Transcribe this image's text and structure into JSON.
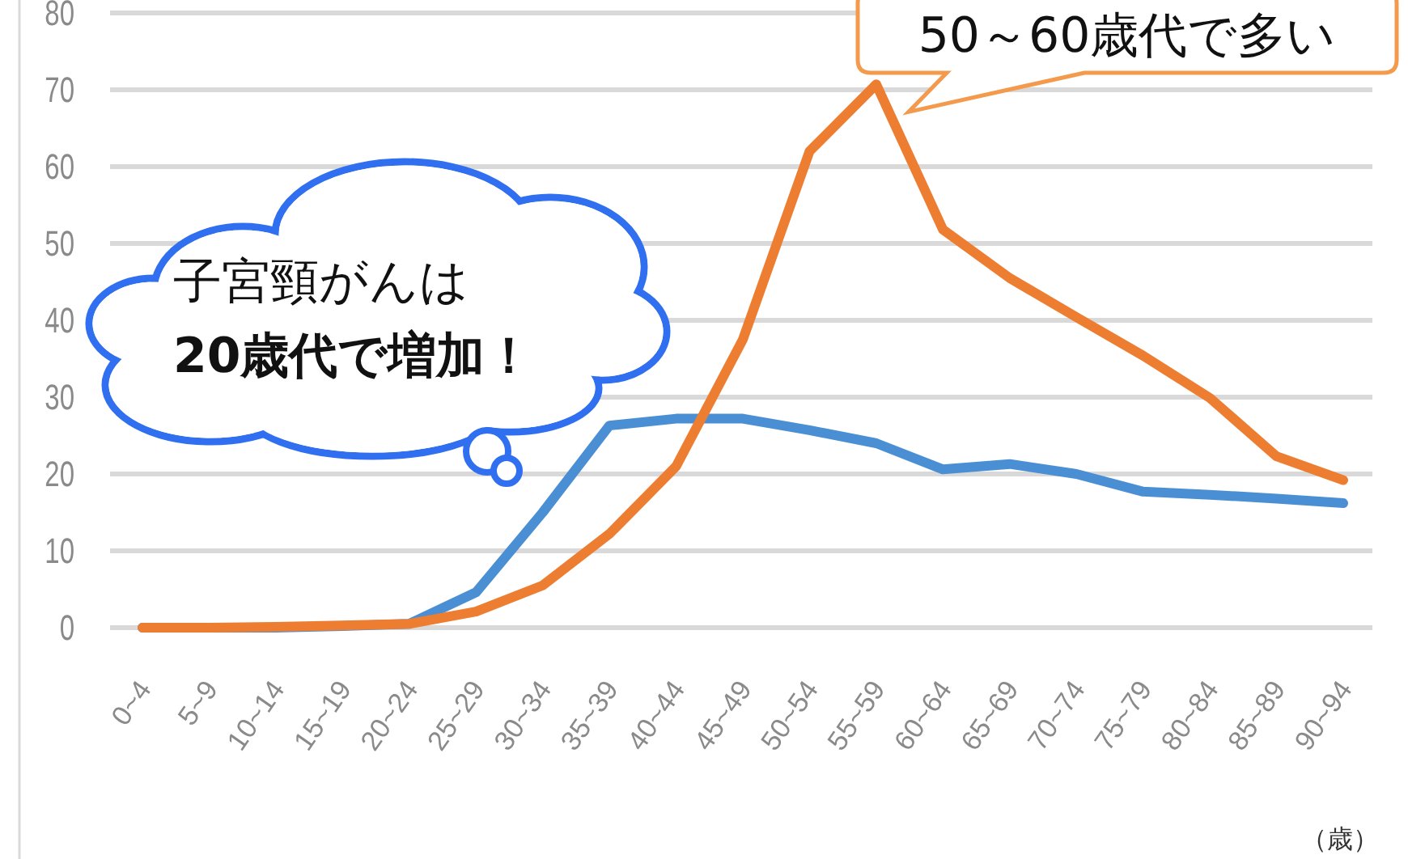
{
  "chart_data": {
    "type": "line",
    "categories": [
      "0~4",
      "5~9",
      "10~14",
      "15~19",
      "20~24",
      "25~29",
      "30~34",
      "35~39",
      "40~44",
      "45~49",
      "50~54",
      "55~59",
      "60~64",
      "65~69",
      "70~74",
      "75~79",
      "80~84",
      "85~89",
      "90~94"
    ],
    "series": [
      {
        "color": "#4a8fd4",
        "values": [
          0,
          0,
          0,
          0.2,
          0.5,
          4.6,
          15,
          26.3,
          27.2,
          27.2,
          25.7,
          24,
          20.6,
          21.3,
          20,
          17.7,
          17.3,
          16.8,
          16.2
        ]
      },
      {
        "color": "#ed7d31",
        "values": [
          0,
          0,
          0.1,
          0.3,
          0.5,
          2.1,
          5.5,
          12.2,
          21,
          37.5,
          62,
          70.7,
          51.8,
          45.5,
          40.4,
          35.4,
          29.9,
          22.3,
          19.2
        ]
      }
    ],
    "ylim": [
      0,
      80
    ],
    "yticks": [
      0,
      10,
      20,
      30,
      40,
      50,
      60,
      70,
      80
    ],
    "grid": "y",
    "marker": "none",
    "line_style": "solid",
    "annotations": [
      "子宮頸がんは",
      "20歳代で増加！",
      {
        "text": "50～60歳代で多い",
        "x": "55~59",
        "y": 70.7
      },
      "（歳）"
    ]
  }
}
